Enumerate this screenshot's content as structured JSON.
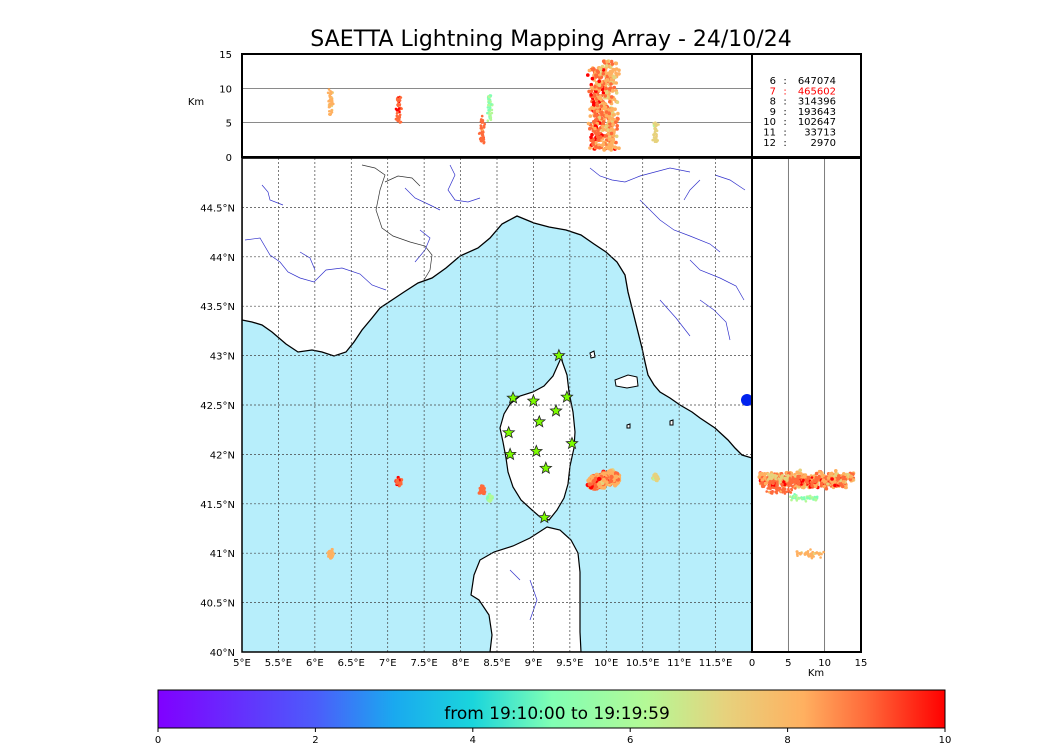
{
  "chart_data": {
    "type": "scatter",
    "title": "SAETTA Lightning Mapping Array - 24/10/24",
    "map": {
      "lon_range": [
        5,
        12
      ],
      "lat_range": [
        40,
        45
      ],
      "lon_ticks": [
        "5°E",
        "5.5°E",
        "6°E",
        "6.5°E",
        "7°E",
        "7.5°E",
        "8°E",
        "8.5°E",
        "9°E",
        "9.5°E",
        "10°E",
        "10.5°E",
        "11°E",
        "11.5°E"
      ],
      "lat_ticks": [
        "40°N",
        "40.5°N",
        "41°N",
        "41.5°N",
        "42°N",
        "42.5°N",
        "43°N",
        "43.5°N",
        "44°N",
        "44.5°N"
      ],
      "sea_color": "#b7eefb",
      "grid": "dotted"
    },
    "altitude_axis": {
      "label": "Km",
      "ticks": [
        "0",
        "5",
        "10",
        "15"
      ],
      "range": [
        0,
        15
      ]
    },
    "counts": [
      {
        "level": "6",
        "count": "647074",
        "color": "#000000"
      },
      {
        "level": "7",
        "count": "465602",
        "color": "#ff0000"
      },
      {
        "level": "8",
        "count": "314396",
        "color": "#000000"
      },
      {
        "level": "9",
        "count": "193643",
        "color": "#000000"
      },
      {
        "level": "10",
        "count": "102647",
        "color": "#000000"
      },
      {
        "level": "11",
        "count": "33713",
        "color": "#000000"
      },
      {
        "level": "12",
        "count": "2970",
        "color": "#000000"
      }
    ],
    "colorbar": {
      "label": "from 19:10:00 to 19:19:59",
      "ticks": [
        "0",
        "2",
        "4",
        "6",
        "8",
        "10"
      ],
      "range": [
        0,
        10
      ],
      "colormap": "rainbow"
    },
    "stations": [
      {
        "lon": 9.35,
        "lat": 43.0
      },
      {
        "lon": 8.72,
        "lat": 42.57
      },
      {
        "lon": 9.0,
        "lat": 42.54
      },
      {
        "lon": 9.46,
        "lat": 42.58
      },
      {
        "lon": 9.31,
        "lat": 42.44
      },
      {
        "lon": 9.08,
        "lat": 42.33
      },
      {
        "lon": 8.66,
        "lat": 42.22
      },
      {
        "lon": 9.53,
        "lat": 42.11
      },
      {
        "lon": 9.04,
        "lat": 42.03
      },
      {
        "lon": 8.68,
        "lat": 42.0
      },
      {
        "lon": 9.17,
        "lat": 41.86
      },
      {
        "lon": 9.15,
        "lat": 41.36
      }
    ],
    "clusters": [
      {
        "lon": 10.05,
        "lat": 41.76,
        "time_min": 7.5,
        "alt_km": [
          1,
          14
        ]
      },
      {
        "lon": 9.88,
        "lat": 41.72,
        "time_min": 8.2,
        "alt_km": [
          1,
          13
        ]
      },
      {
        "lon": 10.68,
        "lat": 41.77,
        "time_min": 6.5,
        "alt_km": [
          2,
          5
        ]
      },
      {
        "lon": 7.15,
        "lat": 41.72,
        "time_min": 8.8,
        "alt_km": [
          5,
          9
        ]
      },
      {
        "lon": 8.4,
        "lat": 41.56,
        "time_min": 5.0,
        "alt_km": [
          5,
          9
        ]
      },
      {
        "lon": 8.3,
        "lat": 41.64,
        "time_min": 8.5,
        "alt_km": [
          2,
          6
        ]
      },
      {
        "lon": 6.22,
        "lat": 40.99,
        "time_min": 7.3,
        "alt_km": [
          6,
          10
        ]
      }
    ]
  }
}
